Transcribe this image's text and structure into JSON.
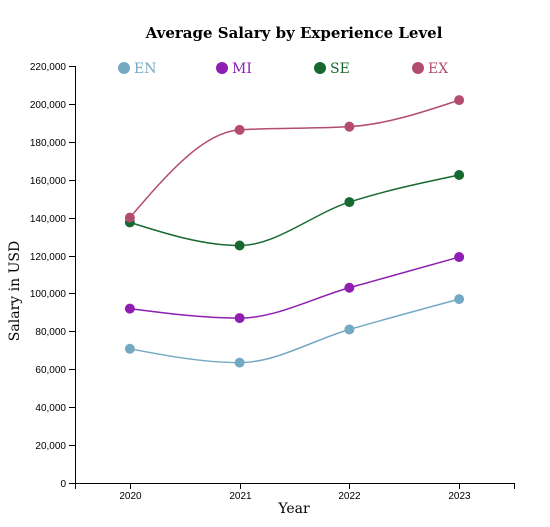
{
  "chart_data": {
    "type": "line",
    "title": "Average Salary by Experience Level",
    "xlabel": "Year",
    "ylabel": "Salary in USD",
    "x": [
      "2020",
      "2021",
      "2022",
      "2023"
    ],
    "ylim": [
      0,
      220000
    ],
    "yticks": [
      0,
      20000,
      40000,
      60000,
      80000,
      100000,
      120000,
      140000,
      160000,
      180000,
      200000,
      220000
    ],
    "ytick_labels": [
      "0",
      "20,000",
      "40,000",
      "60,000",
      "80,000",
      "100,000",
      "120,000",
      "140,000",
      "160,000",
      "180,000",
      "200,000",
      "220,000"
    ],
    "grid": false,
    "legend_position": "top",
    "series": [
      {
        "name": "EN",
        "color": "#74a9c4",
        "values": [
          70800,
          63500,
          81000,
          97000
        ]
      },
      {
        "name": "MI",
        "color": "#8e1fb0",
        "values": [
          92000,
          87000,
          103000,
          119200
        ]
      },
      {
        "name": "SE",
        "color": "#17692f",
        "values": [
          137500,
          125300,
          148200,
          162500
        ]
      },
      {
        "name": "EX",
        "color": "#b44c6e",
        "values": [
          140000,
          186300,
          188000,
          202000
        ]
      }
    ]
  }
}
